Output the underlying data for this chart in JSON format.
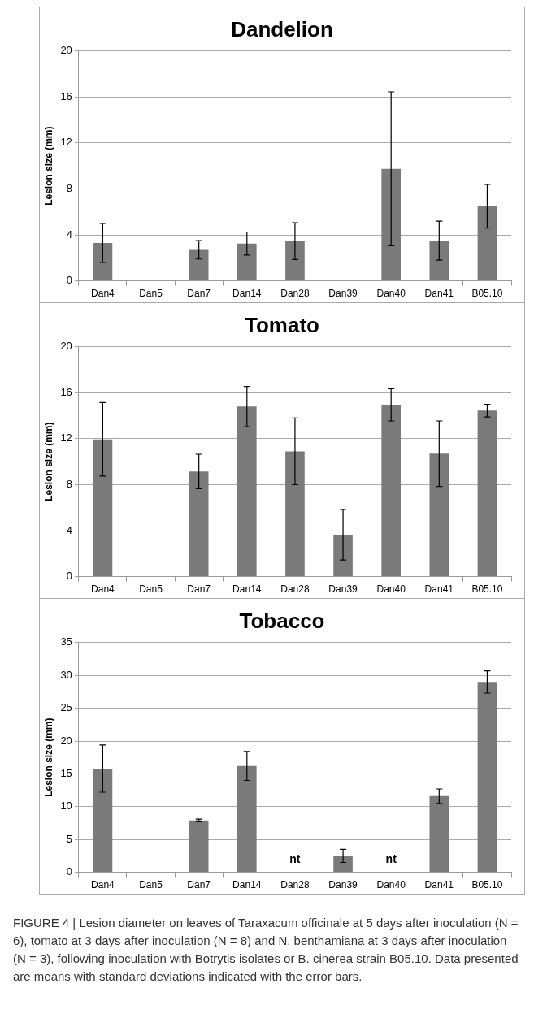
{
  "chart_data": [
    {
      "type": "bar",
      "title": "Dandelion",
      "ylabel": "Lesion size (mm)",
      "categories": [
        "Dan4",
        "Dan5",
        "Dan7",
        "Dan14",
        "Dan28",
        "Dan39",
        "Dan40",
        "Dan41",
        "B05.10"
      ],
      "color": "#7a7a7a",
      "values": [
        3.3,
        0,
        2.7,
        3.25,
        3.45,
        0,
        9.75,
        3.5,
        6.5
      ],
      "errors": [
        1.7,
        null,
        0.8,
        1.0,
        1.6,
        null,
        6.7,
        1.7,
        1.9
      ],
      "ylim": [
        0,
        20
      ],
      "yticks": [
        0,
        4,
        8,
        12,
        16,
        20
      ],
      "grid": "y"
    },
    {
      "type": "bar",
      "title": "Tomato",
      "ylabel": "Lesion size (mm)",
      "categories": [
        "Dan4",
        "Dan5",
        "Dan7",
        "Dan14",
        "Dan28",
        "Dan39",
        "Dan40",
        "Dan41",
        "B05.10"
      ],
      "color": "#7a7a7a",
      "values": [
        11.95,
        0,
        9.15,
        14.8,
        10.9,
        3.65,
        14.95,
        10.7,
        14.45
      ],
      "errors": [
        3.2,
        null,
        1.5,
        1.75,
        2.9,
        2.2,
        1.4,
        2.85,
        0.55
      ],
      "ylim": [
        0,
        20
      ],
      "yticks": [
        0,
        4,
        8,
        12,
        16,
        20
      ],
      "grid": "y"
    },
    {
      "type": "bar",
      "title": "Tobacco",
      "ylabel": "Lesion size (mm)",
      "categories": [
        "Dan4",
        "Dan5",
        "Dan7",
        "Dan14",
        "Dan28",
        "Dan39",
        "Dan40",
        "Dan41",
        "B05.10"
      ],
      "color": "#7a7a7a",
      "values": [
        15.8,
        0,
        7.9,
        16.2,
        null,
        2.5,
        null,
        11.6,
        29.0
      ],
      "errors": [
        3.6,
        null,
        0.2,
        2.2,
        null,
        1.0,
        null,
        1.1,
        1.7
      ],
      "ylim": [
        0,
        35
      ],
      "yticks": [
        0,
        5,
        10,
        15,
        20,
        25,
        30,
        35
      ],
      "grid": "y",
      "annotations": [
        "nt",
        "nt",
        "FIGURE 4 | Lesion diameter on leaves of Taraxacum officinale at 5 days after inoculation (N = 6), tomato at 3 days after inoculation (N = 8) and N. benthamiana at 3 days after inoculation (N = 3), following inoculation with Botrytis isolates or B. cinerea strain B05.10. Data presented are means with standard deviations indicated with the error bars."
      ]
    }
  ]
}
